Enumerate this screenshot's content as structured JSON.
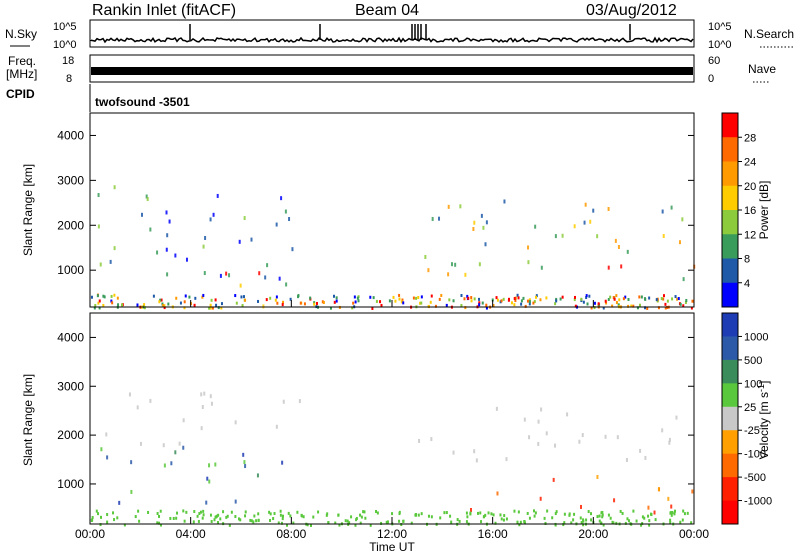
{
  "header": {
    "station": "Rankin Inlet (fitACF)",
    "beam": "Beam 04",
    "date": "03/Aug/2012"
  },
  "panels": {
    "nsky": {
      "left_label": "N.Sky",
      "right_label": "N.Search",
      "left_ticks": [
        "10^5",
        "10^0"
      ],
      "right_ticks": [
        "10^5",
        "10^0"
      ]
    },
    "freq": {
      "left_label_1": "Freq.",
      "left_label_2": "[MHz]",
      "right_label": "Nave",
      "left_ticks": [
        "18",
        "8"
      ],
      "right_ticks": [
        "60",
        "0"
      ]
    },
    "cpid": {
      "label": "CPID",
      "value": "twofsound -3501"
    }
  },
  "chart_data": [
    {
      "type": "heatmap",
      "title": "Power",
      "ylabel": "Slant Range [km]",
      "xlabel": "",
      "yticks": [
        "1000",
        "2000",
        "3000",
        "4000"
      ],
      "ylim": [
        180,
        4500
      ],
      "colorbar": {
        "label": "Power [dB]",
        "ticks": [
          "28",
          "24",
          "20",
          "16",
          "12",
          "8",
          "4"
        ],
        "colors": [
          "#ff0000",
          "#ff6a00",
          "#ff9a00",
          "#ffcc00",
          "#8ccc3c",
          "#3a9c5a",
          "#1e5aa8",
          "#0000ff"
        ]
      },
      "data_regions": [
        {
          "t": [
            0.3,
            8.5
          ],
          "r": [
            600,
            2900
          ],
          "level": "low-mid"
        },
        {
          "t": [
            3.5,
            8.5
          ],
          "r": [
            700,
            1000
          ],
          "level": "high"
        },
        {
          "t": [
            5.5,
            7.0
          ],
          "r": [
            200,
            400
          ],
          "level": "high"
        },
        {
          "t": [
            13.0,
            24.0
          ],
          "r": [
            800,
            2600
          ],
          "level": "mid"
        },
        {
          "t": [
            19.0,
            24.0
          ],
          "r": [
            1100,
            1400
          ],
          "level": "high"
        }
      ]
    },
    {
      "type": "heatmap",
      "title": "Velocity",
      "ylabel": "Slant Range [km]",
      "xlabel": "Time UT",
      "xticks": [
        "00:00",
        "04:00",
        "08:00",
        "12:00",
        "16:00",
        "20:00",
        "00:00"
      ],
      "yticks": [
        "1000",
        "2000",
        "3000",
        "4000"
      ],
      "ylim": [
        180,
        4500
      ],
      "colorbar": {
        "label": "Velocity [m s^-1]",
        "ticks": [
          "1000",
          "500",
          "100",
          "25",
          "-25",
          "-100",
          "-500",
          "-1000"
        ],
        "colors": [
          "#1e3cb4",
          "#2c5aa8",
          "#3a8c5a",
          "#5ac83c",
          "#c8c8c8",
          "#ffa000",
          "#ff6a00",
          "#ff2000",
          "#ff0000"
        ]
      },
      "data_regions": [
        {
          "t": [
            0.3,
            8.5
          ],
          "r": [
            600,
            1800
          ],
          "level": "positive"
        },
        {
          "t": [
            0.3,
            8.5
          ],
          "r": [
            1800,
            2900
          ],
          "level": "near-zero"
        },
        {
          "t": [
            13.0,
            24.0
          ],
          "r": [
            1400,
            2600
          ],
          "level": "near-zero"
        },
        {
          "t": [
            15.0,
            24.0
          ],
          "r": [
            400,
            1200
          ],
          "level": "negative"
        }
      ]
    }
  ]
}
